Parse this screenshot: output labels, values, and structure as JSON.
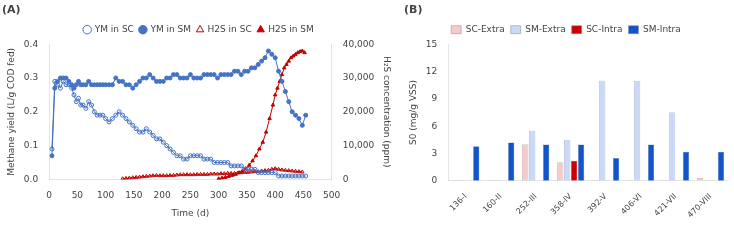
{
  "chart_data": [
    {
      "type": "line",
      "title": "(A)",
      "xlabel": "Time (d)",
      "ylabel": "Methane yield (L/g COD fed)",
      "y2label": "H₂S concentration (ppm)",
      "xlim": [
        0,
        500
      ],
      "xticks": [
        0,
        50,
        100,
        150,
        200,
        250,
        300,
        350,
        400,
        450,
        500
      ],
      "ylim": [
        0,
        0.4
      ],
      "yticks": [
        {
          "value": 0,
          "label": "0.0"
        },
        0.1,
        0.2,
        0.3,
        0.4
      ],
      "y2lim": [
        0,
        40000
      ],
      "y2ticks": [
        0,
        {
          "value": 10000,
          "label": "10,000"
        },
        {
          "value": 20000,
          "label": "20,000"
        },
        {
          "value": 30000,
          "label": "30,000"
        },
        {
          "value": 40000,
          "label": "40,000"
        }
      ],
      "legend": "top",
      "grid": false,
      "series": [
        {
          "name": "YM in SC",
          "color": "#4472C4",
          "marker": "circle_open",
          "axis": "y",
          "x": [
            5,
            10,
            15,
            20,
            25,
            30,
            35,
            40,
            44,
            48,
            52,
            56,
            60,
            65,
            70,
            75,
            80,
            85,
            90,
            95,
            100,
            106,
            112,
            118,
            124,
            130,
            136,
            142,
            148,
            154,
            160,
            166,
            172,
            178,
            184,
            190,
            196,
            202,
            208,
            214,
            220,
            226,
            232,
            238,
            244,
            250,
            256,
            262,
            268,
            274,
            280,
            286,
            292,
            298,
            304,
            310,
            316,
            322,
            328,
            334,
            340,
            346,
            352,
            358,
            364,
            370,
            376,
            382,
            388,
            394,
            400,
            406,
            412,
            418,
            424,
            430,
            436,
            442,
            448,
            454
          ],
          "values": [
            0.09,
            0.29,
            0.28,
            0.27,
            0.29,
            0.28,
            0.28,
            0.27,
            0.25,
            0.23,
            0.24,
            0.22,
            0.22,
            0.21,
            0.23,
            0.22,
            0.2,
            0.19,
            0.19,
            0.19,
            0.18,
            0.17,
            0.18,
            0.19,
            0.2,
            0.19,
            0.18,
            0.17,
            0.16,
            0.15,
            0.14,
            0.14,
            0.15,
            0.14,
            0.13,
            0.12,
            0.12,
            0.11,
            0.1,
            0.09,
            0.08,
            0.07,
            0.07,
            0.06,
            0.06,
            0.07,
            0.07,
            0.07,
            0.07,
            0.06,
            0.06,
            0.06,
            0.05,
            0.05,
            0.05,
            0.05,
            0.05,
            0.04,
            0.04,
            0.04,
            0.04,
            0.03,
            0.03,
            0.03,
            0.03,
            0.02,
            0.02,
            0.02,
            0.02,
            0.02,
            0.02,
            0.01,
            0.01,
            0.01,
            0.01,
            0.01,
            0.01,
            0.01,
            0.01,
            0.01
          ]
        },
        {
          "name": "YM in SM",
          "color": "#4472C4",
          "marker": "circle",
          "axis": "y",
          "x": [
            5,
            10,
            15,
            20,
            25,
            30,
            35,
            40,
            44,
            48,
            52,
            56,
            60,
            65,
            70,
            75,
            80,
            85,
            90,
            95,
            100,
            106,
            112,
            118,
            124,
            130,
            136,
            142,
            148,
            154,
            160,
            166,
            172,
            178,
            184,
            190,
            196,
            202,
            208,
            214,
            220,
            226,
            232,
            238,
            244,
            250,
            256,
            262,
            268,
            274,
            280,
            286,
            292,
            298,
            304,
            310,
            316,
            322,
            328,
            334,
            340,
            346,
            352,
            358,
            364,
            370,
            376,
            382,
            388,
            394,
            400,
            406,
            412,
            418,
            424,
            430,
            436,
            442,
            448,
            454
          ],
          "values": [
            0.07,
            0.27,
            0.29,
            0.3,
            0.3,
            0.3,
            0.29,
            0.28,
            0.27,
            0.28,
            0.29,
            0.28,
            0.28,
            0.28,
            0.29,
            0.28,
            0.28,
            0.28,
            0.28,
            0.28,
            0.28,
            0.28,
            0.28,
            0.3,
            0.29,
            0.29,
            0.28,
            0.28,
            0.27,
            0.28,
            0.29,
            0.3,
            0.3,
            0.31,
            0.3,
            0.29,
            0.29,
            0.29,
            0.3,
            0.3,
            0.31,
            0.31,
            0.3,
            0.3,
            0.3,
            0.31,
            0.3,
            0.3,
            0.3,
            0.31,
            0.31,
            0.31,
            0.31,
            0.3,
            0.31,
            0.31,
            0.31,
            0.31,
            0.32,
            0.32,
            0.31,
            0.32,
            0.32,
            0.33,
            0.33,
            0.34,
            0.35,
            0.36,
            0.38,
            0.37,
            0.36,
            0.32,
            0.29,
            0.26,
            0.23,
            0.2,
            0.19,
            0.18,
            0.16,
            0.19
          ]
        },
        {
          "name": "H2S in SC",
          "color": "#C00000",
          "marker": "triangle_open",
          "axis": "y2",
          "x": [
            130,
            136,
            142,
            148,
            154,
            160,
            166,
            172,
            178,
            184,
            190,
            196,
            202,
            208,
            214,
            220,
            226,
            232,
            238,
            244,
            250,
            256,
            262,
            268,
            274,
            280,
            286,
            292,
            298,
            304,
            310,
            316,
            322,
            328,
            334,
            340,
            346,
            352,
            358,
            364,
            370,
            376,
            382,
            388,
            394,
            400,
            406,
            412,
            418,
            424,
            430,
            436,
            442,
            448
          ],
          "values": [
            200,
            300,
            400,
            500,
            600,
            700,
            800,
            900,
            1000,
            1100,
            1200,
            1100,
            1100,
            1100,
            1200,
            1200,
            1300,
            1400,
            1400,
            1400,
            1400,
            1400,
            1500,
            1500,
            1500,
            1500,
            1600,
            1600,
            1600,
            1700,
            1700,
            1800,
            1800,
            1800,
            1900,
            2000,
            2100,
            2100,
            2200,
            2300,
            2300,
            2500,
            2600,
            2700,
            3000,
            3200,
            3000,
            2800,
            2700,
            2600,
            2500,
            2400,
            2300,
            2200
          ]
        },
        {
          "name": "H2S in SM",
          "color": "#C00000",
          "marker": "triangle",
          "axis": "y2",
          "x": [
            300,
            306,
            312,
            318,
            324,
            330,
            336,
            342,
            348,
            354,
            360,
            366,
            372,
            378,
            384,
            390,
            396,
            400,
            404,
            408,
            412,
            416,
            420,
            424,
            428,
            432,
            436,
            440,
            444,
            448,
            452
          ],
          "values": [
            200,
            400,
            600,
            900,
            1200,
            1500,
            2000,
            2500,
            3200,
            4200,
            5500,
            7000,
            9000,
            11000,
            14000,
            18000,
            22000,
            25000,
            27000,
            29000,
            31000,
            33000,
            34000,
            35000,
            36000,
            36500,
            37000,
            37500,
            37800,
            38000,
            37500
          ]
        }
      ]
    },
    {
      "type": "bar",
      "title": "(B)",
      "ylabel": "S0 (mg/g VSS)",
      "categories": [
        "136-I",
        "160-II",
        "252-III",
        "358-IV",
        "392-V",
        "406-VI",
        "421-VII",
        "470-VIII"
      ],
      "ylim": [
        0,
        15
      ],
      "yticks": [
        0,
        3,
        6,
        9,
        12,
        15
      ],
      "legend": "top",
      "grid": false,
      "series": [
        {
          "name": "SC-Extra",
          "color": "#F4CCCC",
          "values": [
            0.05,
            0.05,
            4.0,
            2.0,
            0.05,
            0.05,
            0.05,
            0.3
          ]
        },
        {
          "name": "SM-Extra",
          "color": "#C9DAF8",
          "values": [
            0.05,
            0.05,
            5.5,
            4.5,
            11.0,
            11.0,
            7.5,
            0.05
          ]
        },
        {
          "name": "SC-Intra",
          "color": "#CC0000",
          "values": [
            0,
            0,
            0,
            2.2,
            0,
            0,
            0,
            0
          ]
        },
        {
          "name": "SM-Intra",
          "color": "#1155CC",
          "values": [
            3.8,
            4.2,
            4.0,
            4.0,
            2.5,
            4.0,
            3.2,
            3.2
          ]
        }
      ]
    }
  ]
}
